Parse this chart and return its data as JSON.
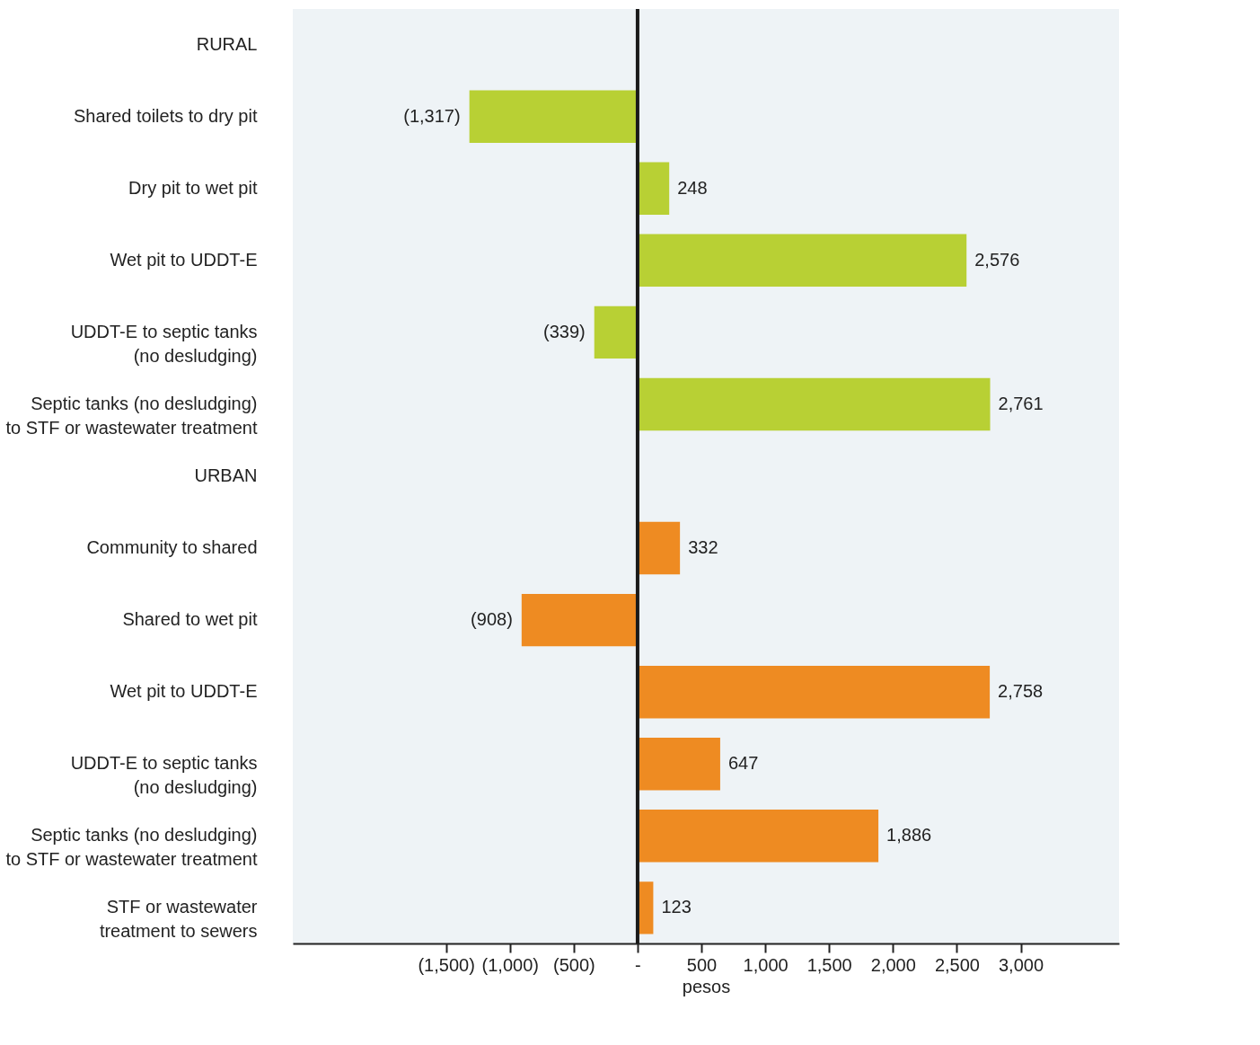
{
  "chart_data": {
    "type": "bar",
    "orientation": "horizontal",
    "categories": [
      "RURAL",
      "Shared toilets to dry pit",
      "Dry pit to wet pit",
      "Wet pit to UDDT-E",
      "UDDT-E to septic tanks\n(no desludging)",
      "Septic tanks (no desludging)\nto STF or wastewater treatment",
      "URBAN",
      "Community to shared",
      "Shared to wet pit",
      "Wet pit to UDDT-E",
      "UDDT-E to septic tanks\n(no desludging)",
      "Septic tanks (no desludging)\nto STF or wastewater treatment",
      "STF or wastewater\ntreatment to sewers"
    ],
    "series": [
      {
        "color": "#b8d034",
        "values": [
          null,
          -1317,
          248,
          2576,
          -339,
          2761,
          null,
          null,
          null,
          null,
          null,
          null,
          null
        ],
        "value_labels": [
          null,
          "(1,317)",
          "248",
          "2,576",
          "(339)",
          "2,761",
          null,
          null,
          null,
          null,
          null,
          null,
          null
        ]
      },
      {
        "color": "#ee8b22",
        "values": [
          null,
          null,
          null,
          null,
          null,
          null,
          null,
          332,
          -908,
          2758,
          647,
          1886,
          123
        ],
        "value_labels": [
          null,
          null,
          null,
          null,
          null,
          null,
          null,
          "332",
          "(908)",
          "2,758",
          "647",
          "1,886",
          "123"
        ]
      }
    ],
    "xlabel": "pesos",
    "xlim": [
      -2700,
      3770
    ],
    "xticks": [
      {
        "value": -1500,
        "label": "(1,500)"
      },
      {
        "value": -1000,
        "label": "(1,000)"
      },
      {
        "value": -500,
        "label": "(500)"
      },
      {
        "value": 0,
        "label": "-"
      },
      500,
      {
        "value": 1000,
        "label": "1,000"
      },
      {
        "value": 1500,
        "label": "1,500"
      },
      {
        "value": 2000,
        "label": "2,000"
      },
      {
        "value": 2500,
        "label": "2,500"
      },
      {
        "value": 3000,
        "label": "3,000"
      }
    ],
    "ref_lines": [
      {
        "axis": "x",
        "value": 0,
        "color": "#1a1a1a"
      }
    ],
    "grid": false
  }
}
